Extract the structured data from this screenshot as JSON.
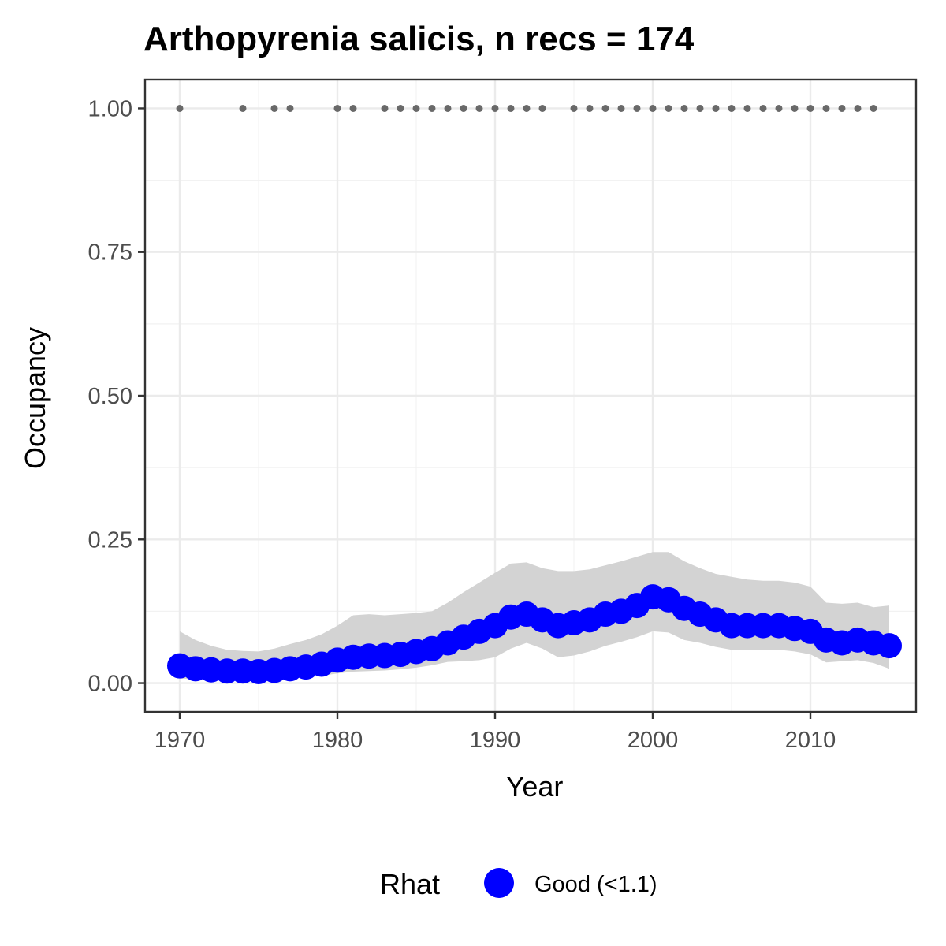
{
  "chart_data": {
    "type": "line",
    "title": "Arthopyrenia salicis, n recs = 174",
    "xlabel": "Year",
    "ylabel": "Occupancy",
    "xlim": [
      1967.8,
      2016.7
    ],
    "ylim": [
      -0.05,
      1.05
    ],
    "x_ticks": [
      1970,
      1980,
      1990,
      2000,
      2010
    ],
    "x_tick_labels": [
      "1970",
      "1980",
      "1990",
      "2000",
      "2010"
    ],
    "y_ticks": [
      0,
      0.25,
      0.5,
      0.75,
      1.0
    ],
    "y_tick_labels": [
      "0.00",
      "0.25",
      "0.50",
      "0.75",
      "1.00"
    ],
    "grid": true,
    "legend": {
      "title": "Rhat",
      "position": "bottom",
      "entries": [
        {
          "label": "Good (<1.1)",
          "color": "#0000ff"
        }
      ]
    },
    "colors": {
      "mean": "#0000ff",
      "ribbon": "#d3d3d3",
      "records": "#696969"
    },
    "records_series": {
      "y": 1.0,
      "x": [
        1970,
        1974,
        1976,
        1977,
        1980,
        1981,
        1983,
        1984,
        1985,
        1986,
        1987,
        1988,
        1989,
        1990,
        1991,
        1992,
        1993,
        1995,
        1996,
        1997,
        1998,
        1999,
        2000,
        2001,
        2002,
        2003,
        2004,
        2005,
        2006,
        2007,
        2008,
        2009,
        2010,
        2011,
        2012,
        2013,
        2014
      ]
    },
    "series": [
      {
        "name": "Good (<1.1)",
        "x": [
          1970,
          1971,
          1972,
          1973,
          1974,
          1975,
          1976,
          1977,
          1978,
          1979,
          1980,
          1981,
          1982,
          1983,
          1984,
          1985,
          1986,
          1987,
          1988,
          1989,
          1990,
          1991,
          1992,
          1993,
          1994,
          1995,
          1996,
          1997,
          1998,
          1999,
          2000,
          2001,
          2002,
          2003,
          2004,
          2005,
          2006,
          2007,
          2008,
          2009,
          2010,
          2011,
          2012,
          2013,
          2014,
          2015
        ],
        "mean": [
          0.03,
          0.025,
          0.023,
          0.021,
          0.021,
          0.02,
          0.022,
          0.025,
          0.028,
          0.033,
          0.04,
          0.045,
          0.047,
          0.048,
          0.05,
          0.055,
          0.06,
          0.07,
          0.08,
          0.09,
          0.1,
          0.115,
          0.12,
          0.11,
          0.1,
          0.105,
          0.11,
          0.12,
          0.125,
          0.135,
          0.15,
          0.145,
          0.13,
          0.12,
          0.11,
          0.1,
          0.1,
          0.1,
          0.1,
          0.095,
          0.09,
          0.075,
          0.07,
          0.075,
          0.07,
          0.065
        ],
        "lower": [
          0.008,
          0.007,
          0.007,
          0.006,
          0.006,
          0.006,
          0.007,
          0.008,
          0.01,
          0.013,
          0.017,
          0.02,
          0.021,
          0.022,
          0.024,
          0.027,
          0.031,
          0.037,
          0.038,
          0.04,
          0.045,
          0.06,
          0.07,
          0.06,
          0.045,
          0.048,
          0.055,
          0.065,
          0.072,
          0.08,
          0.09,
          0.088,
          0.075,
          0.07,
          0.063,
          0.058,
          0.058,
          0.058,
          0.058,
          0.055,
          0.05,
          0.036,
          0.038,
          0.04,
          0.035,
          0.025
        ],
        "upper": [
          0.09,
          0.075,
          0.065,
          0.058,
          0.056,
          0.055,
          0.06,
          0.068,
          0.075,
          0.085,
          0.1,
          0.118,
          0.12,
          0.118,
          0.12,
          0.122,
          0.125,
          0.14,
          0.158,
          0.175,
          0.192,
          0.208,
          0.21,
          0.2,
          0.195,
          0.195,
          0.198,
          0.205,
          0.212,
          0.22,
          0.228,
          0.228,
          0.212,
          0.2,
          0.19,
          0.185,
          0.18,
          0.178,
          0.178,
          0.175,
          0.168,
          0.14,
          0.138,
          0.14,
          0.132,
          0.135
        ]
      }
    ]
  }
}
